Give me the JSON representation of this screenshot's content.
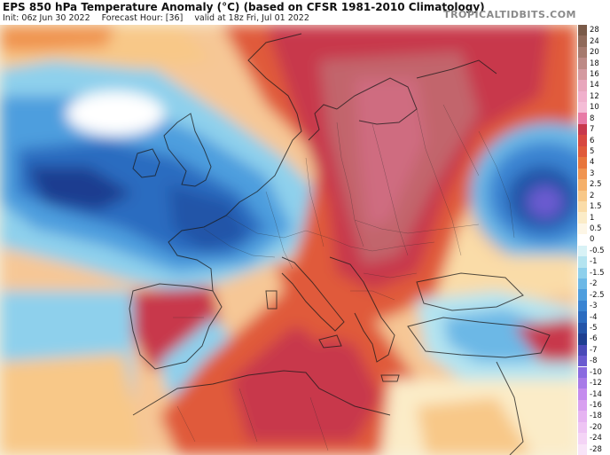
{
  "header": {
    "title": "EPS 850 hPa Temperature Anomaly (°C) (based on CFSR 1981-2010 Climatology)",
    "init": "Init: 06z Jun 30 2022",
    "forecast_hour": "Forecast Hour: [36]",
    "valid": "valid at 18z Fri, Jul 01 2022",
    "brand": "TROPICALTIDBITS.COM"
  },
  "colorbar": [
    {
      "label": "28",
      "color": "#7a5a48"
    },
    {
      "label": "24",
      "color": "#906a5a"
    },
    {
      "label": "20",
      "color": "#a67a6e"
    },
    {
      "label": "18",
      "color": "#bd8a86"
    },
    {
      "label": "16",
      "color": "#d49aa0"
    },
    {
      "label": "14",
      "color": "#e8a6bc"
    },
    {
      "label": "12",
      "color": "#f0b0cc"
    },
    {
      "label": "10",
      "color": "#f4bcd6"
    },
    {
      "label": "8",
      "color": "#e87aa6"
    },
    {
      "label": "7",
      "color": "#c8384c"
    },
    {
      "label": "6",
      "color": "#d84840"
    },
    {
      "label": "5",
      "color": "#e05a3a"
    },
    {
      "label": "4",
      "color": "#e8763c"
    },
    {
      "label": "3",
      "color": "#f09450"
    },
    {
      "label": "2.5",
      "color": "#f5b06a"
    },
    {
      "label": "2",
      "color": "#f8c888"
    },
    {
      "label": "1.5",
      "color": "#fadca8"
    },
    {
      "label": "1",
      "color": "#fbecc8"
    },
    {
      "label": "0.5",
      "color": "#fdf6e6"
    },
    {
      "label": "0",
      "color": "#ffffff"
    },
    {
      "label": "-0.5",
      "color": "#d8f2f6"
    },
    {
      "label": "-1",
      "color": "#b4e4f0"
    },
    {
      "label": "-1.5",
      "color": "#8ed0ec"
    },
    {
      "label": "-2",
      "color": "#6cb8e6"
    },
    {
      "label": "-2.5",
      "color": "#4e9ede"
    },
    {
      "label": "-3",
      "color": "#3a84d2"
    },
    {
      "label": "-4",
      "color": "#2c6cc0"
    },
    {
      "label": "-5",
      "color": "#2454a8"
    },
    {
      "label": "-6",
      "color": "#1e3e90"
    },
    {
      "label": "-7",
      "color": "#4a4ab8"
    },
    {
      "label": "-8",
      "color": "#6a5ad0"
    },
    {
      "label": "-10",
      "color": "#8a6ae0"
    },
    {
      "label": "-12",
      "color": "#a87ae8"
    },
    {
      "label": "-14",
      "color": "#c48cee"
    },
    {
      "label": "-16",
      "color": "#d8a0f0"
    },
    {
      "label": "-18",
      "color": "#e6b4f2"
    },
    {
      "label": "-20",
      "color": "#eec4f4"
    },
    {
      "label": "-24",
      "color": "#f4d4f6"
    },
    {
      "label": "-28",
      "color": "#f8e4f8"
    }
  ]
}
